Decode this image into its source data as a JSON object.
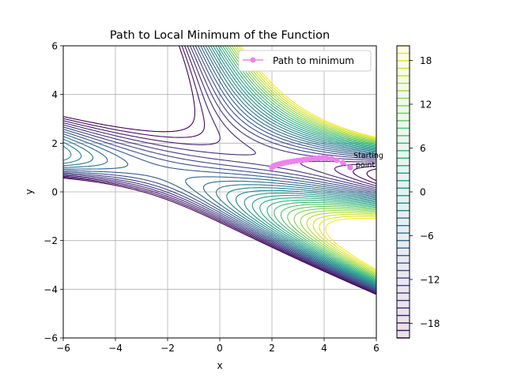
{
  "chart_data": {
    "type": "contour",
    "title": "Path to Local Minimum of the Function",
    "xlabel": "x",
    "ylabel": "y",
    "xlim": [
      -6,
      6
    ],
    "ylim": [
      -6,
      6
    ],
    "xticks": [
      -6,
      -4,
      -2,
      0,
      2,
      4,
      6
    ],
    "yticks": [
      -6,
      -4,
      -2,
      0,
      2,
      4,
      6
    ],
    "xtick_labels": [
      "−6",
      "−4",
      "−2",
      "0",
      "2",
      "4",
      "6"
    ],
    "ytick_labels": [
      "−6",
      "−4",
      "−2",
      "0",
      "2",
      "4",
      "6"
    ],
    "grid": true,
    "legend": {
      "placement": "upper right",
      "entries": [
        {
          "label": "Path to minimum",
          "color": "#ee82ee"
        }
      ]
    },
    "colorbar": {
      "colormap": "viridis",
      "range": [
        -20,
        20
      ],
      "ticks": [
        -18,
        -12,
        -6,
        0,
        6,
        12,
        18
      ],
      "tick_labels": [
        "−18",
        "−12",
        "−6",
        "0",
        "6",
        "12",
        "18"
      ]
    },
    "contour_levels": 40,
    "series": [
      {
        "name": "Path to minimum",
        "color": "#ee82ee",
        "marker": "circle",
        "x": [
          5.0,
          4.72,
          4.48,
          4.28,
          4.1,
          3.95,
          3.8,
          3.65,
          3.5,
          3.36,
          3.22,
          3.09,
          2.96,
          2.84,
          2.73,
          2.62,
          2.52,
          2.43,
          2.35,
          2.28,
          2.21,
          2.15,
          2.1,
          2.06,
          2.03,
          2.01,
          2.0
        ],
        "y": [
          1.0,
          1.2,
          1.3,
          1.36,
          1.39,
          1.4,
          1.39,
          1.38,
          1.36,
          1.34,
          1.32,
          1.3,
          1.28,
          1.26,
          1.24,
          1.22,
          1.2,
          1.18,
          1.16,
          1.14,
          1.12,
          1.1,
          1.08,
          1.06,
          1.04,
          1.02,
          1.0
        ]
      }
    ],
    "annotations": [
      {
        "text_lines": [
          "Starting",
          "point"
        ],
        "x": 5.0,
        "y": 1.0
      }
    ]
  }
}
